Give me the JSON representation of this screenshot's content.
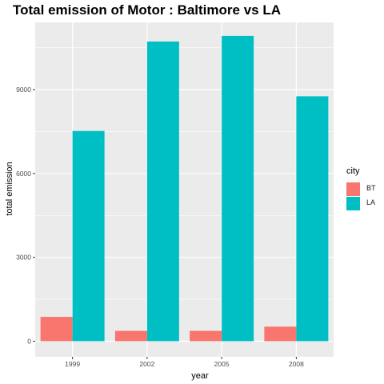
{
  "chart_data": {
    "type": "bar",
    "title": "Total emission of Motor : Baltimore vs LA",
    "xlabel": "year",
    "ylabel": "total emission",
    "categories": [
      "1999",
      "2002",
      "2005",
      "2008"
    ],
    "series": [
      {
        "name": "BT",
        "values": [
          870,
          370,
          370,
          520
        ],
        "color": "#F8766D"
      },
      {
        "name": "LA",
        "values": [
          7520,
          10720,
          10920,
          8760
        ],
        "color": "#00BFC4"
      }
    ],
    "yticks": [
      0,
      3000,
      6000,
      9000
    ],
    "ylim": [
      0,
      11450
    ],
    "legend": {
      "title": "city",
      "position": "right"
    },
    "panel_background": "#EBEBEB",
    "grid_color": "#FFFFFF",
    "grid": true,
    "bar_layout": "dodged"
  }
}
